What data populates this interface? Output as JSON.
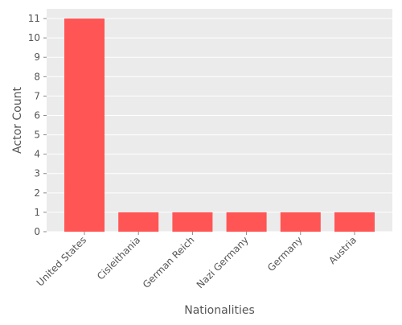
{
  "chart_data": {
    "type": "bar",
    "categories": [
      "United States",
      "Cisleithania",
      "German Reich",
      "Nazi Germany",
      "Germany",
      "Austria"
    ],
    "values": [
      11,
      1,
      1,
      1,
      1,
      1
    ],
    "title": "",
    "xlabel": "Nationalities",
    "ylabel": "Actor Count",
    "ylim": [
      0,
      11.5
    ],
    "yticks": [
      0,
      1,
      2,
      3,
      4,
      5,
      6,
      7,
      8,
      9,
      10,
      11
    ],
    "grid": true,
    "legend": "none",
    "colors": {
      "bar": "#ff5555",
      "plot_background": "#ebebeb",
      "grid": "#ffffff",
      "text": "#555555"
    }
  }
}
